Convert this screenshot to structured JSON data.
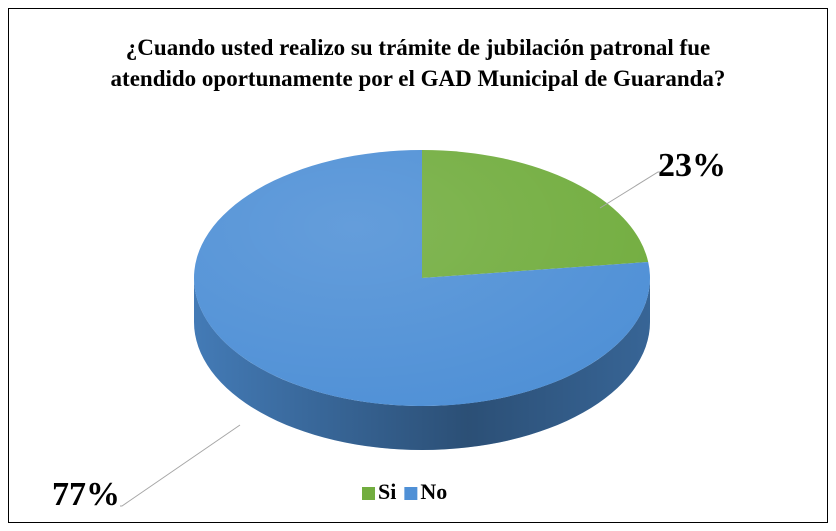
{
  "chart_data": {
    "type": "pie3d",
    "title": "¿Cuando usted realizo su trámite de jubilación patronal fue atendido oportunamente por el GAD Municipal de Guaranda?",
    "categories": [
      "Si",
      "No"
    ],
    "values": [
      23,
      77
    ],
    "value_labels": [
      "23%",
      "77%"
    ],
    "colors": [
      "#72ad3f",
      "#4f90d6"
    ],
    "legend": "bottom"
  }
}
